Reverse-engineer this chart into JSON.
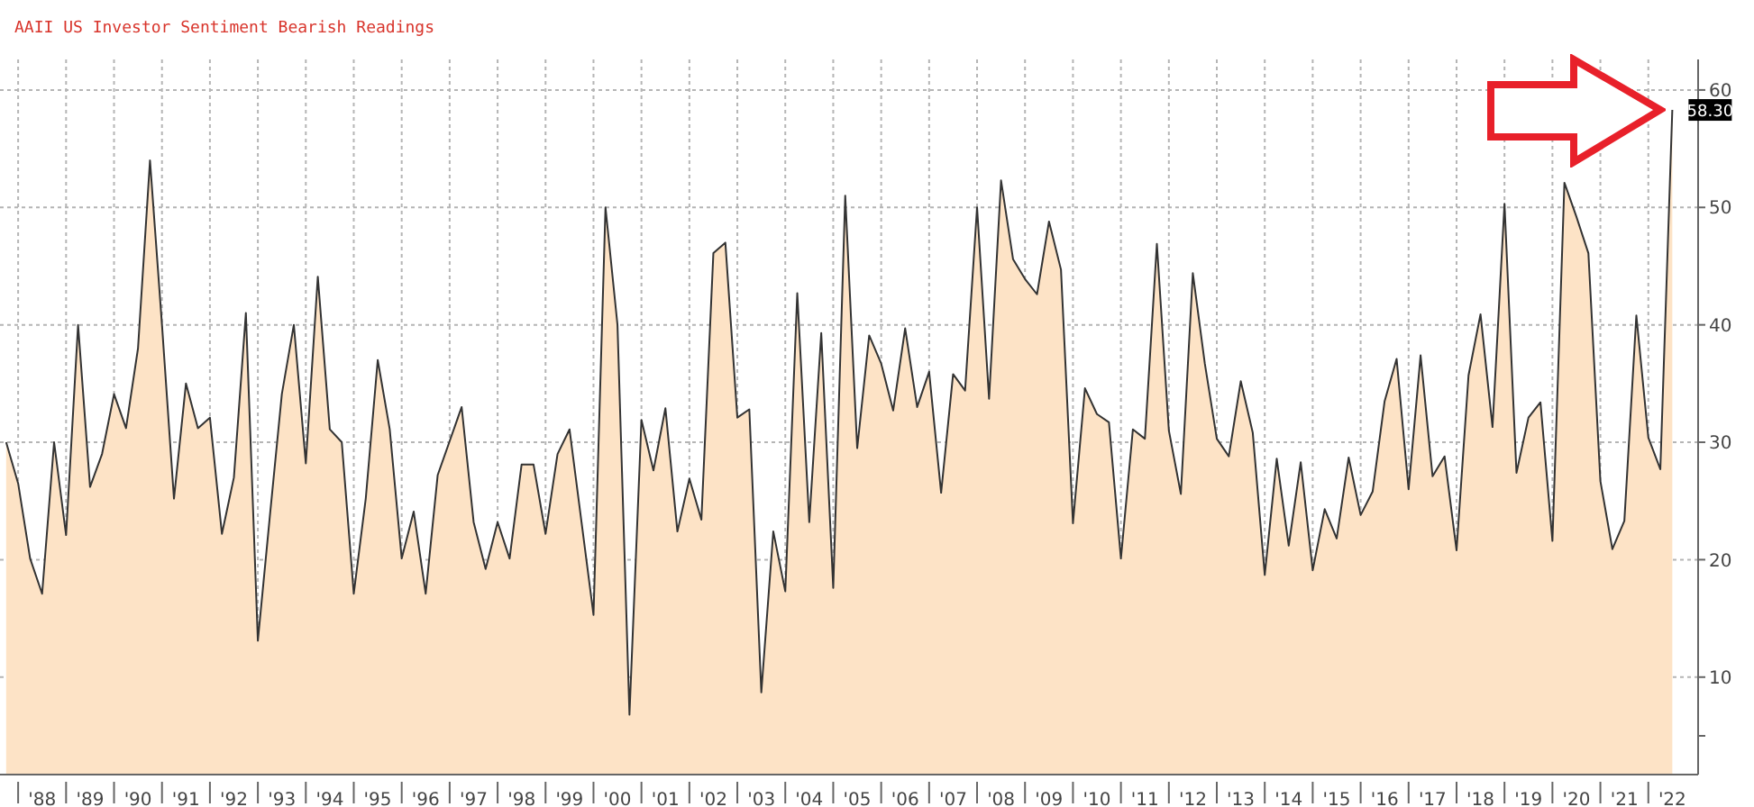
{
  "chart_data": {
    "type": "area",
    "title": "AAII US Investor Sentiment Bearish Readings",
    "x": [
      "1987-10",
      "1988-01",
      "1988-04",
      "1988-07",
      "1988-10",
      "1989-01",
      "1989-04",
      "1989-07",
      "1989-10",
      "1990-01",
      "1990-04",
      "1990-07",
      "1990-10",
      "1991-01",
      "1991-04",
      "1991-07",
      "1991-10",
      "1992-01",
      "1992-04",
      "1992-07",
      "1992-10",
      "1993-01",
      "1993-04",
      "1993-07",
      "1993-10",
      "1994-01",
      "1994-04",
      "1994-07",
      "1994-10",
      "1995-01",
      "1995-04",
      "1995-07",
      "1995-10",
      "1996-01",
      "1996-04",
      "1996-07",
      "1996-10",
      "1997-01",
      "1997-04",
      "1997-07",
      "1997-10",
      "1998-01",
      "1998-04",
      "1998-07",
      "1998-10",
      "1999-01",
      "1999-04",
      "1999-07",
      "1999-10",
      "2000-01",
      "2000-04",
      "2000-07",
      "2000-10",
      "2001-01",
      "2001-04",
      "2001-07",
      "2001-10",
      "2002-01",
      "2002-04",
      "2002-07",
      "2002-10",
      "2003-01",
      "2003-04",
      "2003-07",
      "2003-10",
      "2004-01",
      "2004-04",
      "2004-07",
      "2004-10",
      "2005-01",
      "2005-04",
      "2005-07",
      "2005-10",
      "2006-01",
      "2006-04",
      "2006-07",
      "2006-10",
      "2007-01",
      "2007-04",
      "2007-07",
      "2007-10",
      "2008-01",
      "2008-04",
      "2008-07",
      "2008-10",
      "2009-01",
      "2009-04",
      "2009-07",
      "2009-10",
      "2010-01",
      "2010-04",
      "2010-07",
      "2010-10",
      "2011-01",
      "2011-04",
      "2011-07",
      "2011-10",
      "2012-01",
      "2012-04",
      "2012-07",
      "2012-10",
      "2013-01",
      "2013-04",
      "2013-07",
      "2013-10",
      "2014-01",
      "2014-04",
      "2014-07",
      "2014-10",
      "2015-01",
      "2015-04",
      "2015-07",
      "2015-10",
      "2016-01",
      "2016-04",
      "2016-07",
      "2016-10",
      "2017-01",
      "2017-04",
      "2017-07",
      "2017-10",
      "2018-01",
      "2018-04",
      "2018-07",
      "2018-10",
      "2019-01",
      "2019-04",
      "2019-07",
      "2019-10",
      "2020-01",
      "2020-04",
      "2020-07",
      "2020-10",
      "2021-01",
      "2021-04",
      "2021-07",
      "2021-10",
      "2022-01",
      "2022-04",
      "2022-07"
    ],
    "series": [
      {
        "color": "#fde3c6",
        "values": [
          30,
          26.5,
          20.1,
          17.1,
          30,
          22.1,
          40,
          26.2,
          29,
          34.1,
          31.2,
          38,
          54,
          40,
          25.2,
          35,
          31.2,
          32.1,
          22.2,
          27,
          41,
          13.1,
          23.7,
          34.1,
          40,
          28.2,
          44.1,
          31.1,
          30,
          17.1,
          25.2,
          37,
          31.1,
          20.1,
          24.1,
          17.1,
          27.2,
          30.1,
          33,
          23.2,
          19.2,
          23.2,
          20.1,
          28.1,
          28.1,
          22.2,
          29,
          31.1,
          23.2,
          15.3,
          50,
          40,
          6.8,
          31.9,
          27.6,
          32.9,
          22.4,
          26.9,
          23.4,
          46.1,
          47,
          32.1,
          32.8,
          8.7,
          22.4,
          17.3,
          42.7,
          23.2,
          39.3,
          17.6,
          51,
          29.5,
          39.1,
          36.7,
          32.7,
          39.7,
          33,
          36,
          25.7,
          35.8,
          34.4,
          50,
          33.7,
          52.3,
          45.6,
          43.9,
          42.6,
          48.8,
          44.7,
          23.1,
          34.6,
          32.4,
          31.7,
          20.1,
          31.1,
          30.3,
          46.9,
          31,
          25.6,
          44.4,
          36.7,
          30.3,
          28.8,
          35.2,
          30.8,
          18.7,
          28.6,
          21.2,
          28.3,
          19.1,
          24.3,
          21.8,
          28.7,
          23.8,
          25.8,
          33.5,
          37.1,
          26,
          37.4,
          27.1,
          28.8,
          20.8,
          35.7,
          40.9,
          31.3,
          50.3,
          27.4,
          32.1,
          33.4,
          21.6,
          52.1,
          49.2,
          46.1,
          26.7,
          20.9,
          23.3,
          40.8,
          30.4,
          27.7,
          58.3
        ],
        "value_labels": [
          null,
          null,
          null,
          null,
          null,
          null,
          null,
          null,
          null,
          null,
          null,
          null,
          null,
          null,
          null,
          null,
          null,
          null,
          null,
          null,
          null,
          null,
          null,
          null,
          null,
          null,
          null,
          null,
          null,
          null,
          null,
          null,
          null,
          null,
          null,
          null,
          null,
          null,
          null,
          null,
          null,
          null,
          null,
          null,
          null,
          null,
          null,
          null,
          null,
          null,
          null,
          null,
          null,
          null,
          null,
          null,
          null,
          null,
          null,
          null,
          null,
          null,
          null,
          null,
          null,
          null,
          null,
          null,
          null,
          null,
          null,
          null,
          null,
          null,
          null,
          null,
          null,
          null,
          null,
          null,
          null,
          null,
          null,
          null,
          null,
          null,
          null,
          null,
          null,
          null,
          null,
          null,
          null,
          null,
          null,
          null,
          null,
          null,
          null,
          null,
          null,
          null,
          null,
          null,
          null,
          null,
          null,
          null,
          null,
          null,
          null,
          null,
          null,
          null,
          null,
          null,
          null,
          null,
          null,
          null,
          null,
          null,
          null,
          null,
          null,
          null,
          null,
          null,
          null,
          null,
          null,
          null,
          null,
          null,
          null,
          null,
          null,
          null,
          null,
          "58.30"
        ]
      }
    ],
    "xlim": [
      "1987-08-15",
      "2023-01-15"
    ],
    "xticks": [
      {
        "value": "1988",
        "label": null
      },
      {
        "value": "1988-07",
        "label": "'88"
      },
      {
        "value": "1989",
        "label": null
      },
      {
        "value": "1989-07",
        "label": "'89"
      },
      {
        "value": "1990",
        "label": null
      },
      {
        "value": "1990-07",
        "label": "'90"
      },
      {
        "value": "1991",
        "label": null
      },
      {
        "value": "1991-07",
        "label": "'91"
      },
      {
        "value": "1992",
        "label": null
      },
      {
        "value": "1992-07",
        "label": "'92"
      },
      {
        "value": "1993",
        "label": null
      },
      {
        "value": "1993-07",
        "label": "'93"
      },
      {
        "value": "1994",
        "label": null
      },
      {
        "value": "1994-07",
        "label": "'94"
      },
      {
        "value": "1995",
        "label": null
      },
      {
        "value": "1995-07",
        "label": "'95"
      },
      {
        "value": "1996",
        "label": null
      },
      {
        "value": "1996-07",
        "label": "'96"
      },
      {
        "value": "1997",
        "label": null
      },
      {
        "value": "1997-07",
        "label": "'97"
      },
      {
        "value": "1998",
        "label": null
      },
      {
        "value": "1998-07",
        "label": "'98"
      },
      {
        "value": "1999",
        "label": null
      },
      {
        "value": "1999-07",
        "label": "'99"
      },
      {
        "value": "2000",
        "label": null
      },
      {
        "value": "2000-07",
        "label": "'00"
      },
      {
        "value": "2001",
        "label": null
      },
      {
        "value": "2001-07",
        "label": "'01"
      },
      {
        "value": "2002",
        "label": null
      },
      {
        "value": "2002-07",
        "label": "'02"
      },
      {
        "value": "2003",
        "label": null
      },
      {
        "value": "2003-07",
        "label": "'03"
      },
      {
        "value": "2004",
        "label": null
      },
      {
        "value": "2004-07",
        "label": "'04"
      },
      {
        "value": "2005",
        "label": null
      },
      {
        "value": "2005-07",
        "label": "'05"
      },
      {
        "value": "2006",
        "label": null
      },
      {
        "value": "2006-07",
        "label": "'06"
      },
      {
        "value": "2007",
        "label": null
      },
      {
        "value": "2007-07",
        "label": "'07"
      },
      {
        "value": "2008",
        "label": null
      },
      {
        "value": "2008-07",
        "label": "'08"
      },
      {
        "value": "2009",
        "label": null
      },
      {
        "value": "2009-07",
        "label": "'09"
      },
      {
        "value": "2010",
        "label": null
      },
      {
        "value": "2010-07",
        "label": "'10"
      },
      {
        "value": "2011",
        "label": null
      },
      {
        "value": "2011-07",
        "label": "'11"
      },
      {
        "value": "2012",
        "label": null
      },
      {
        "value": "2012-07",
        "label": "'12"
      },
      {
        "value": "2013",
        "label": null
      },
      {
        "value": "2013-07",
        "label": "'13"
      },
      {
        "value": "2014",
        "label": null
      },
      {
        "value": "2014-07",
        "label": "'14"
      },
      {
        "value": "2015",
        "label": null
      },
      {
        "value": "2015-07",
        "label": "'15"
      },
      {
        "value": "2016",
        "label": null
      },
      {
        "value": "2016-07",
        "label": "'16"
      },
      {
        "value": "2017",
        "label": null
      },
      {
        "value": "2017-07",
        "label": "'17"
      },
      {
        "value": "2018",
        "label": null
      },
      {
        "value": "2018-07",
        "label": "'18"
      },
      {
        "value": "2019",
        "label": null
      },
      {
        "value": "2019-07",
        "label": "'19"
      },
      {
        "value": "2020",
        "label": null
      },
      {
        "value": "2020-07",
        "label": "'20"
      },
      {
        "value": "2021",
        "label": null
      },
      {
        "value": "2021-07",
        "label": "'21"
      },
      {
        "value": "2022",
        "label": null
      },
      {
        "value": "2022-07",
        "label": "'22"
      }
    ],
    "ylim": [
      1.7,
      62.6
    ],
    "yticks": [
      {
        "value": 5,
        "label": null
      },
      10,
      20,
      30,
      40,
      50,
      60
    ],
    "grid": true
  }
}
